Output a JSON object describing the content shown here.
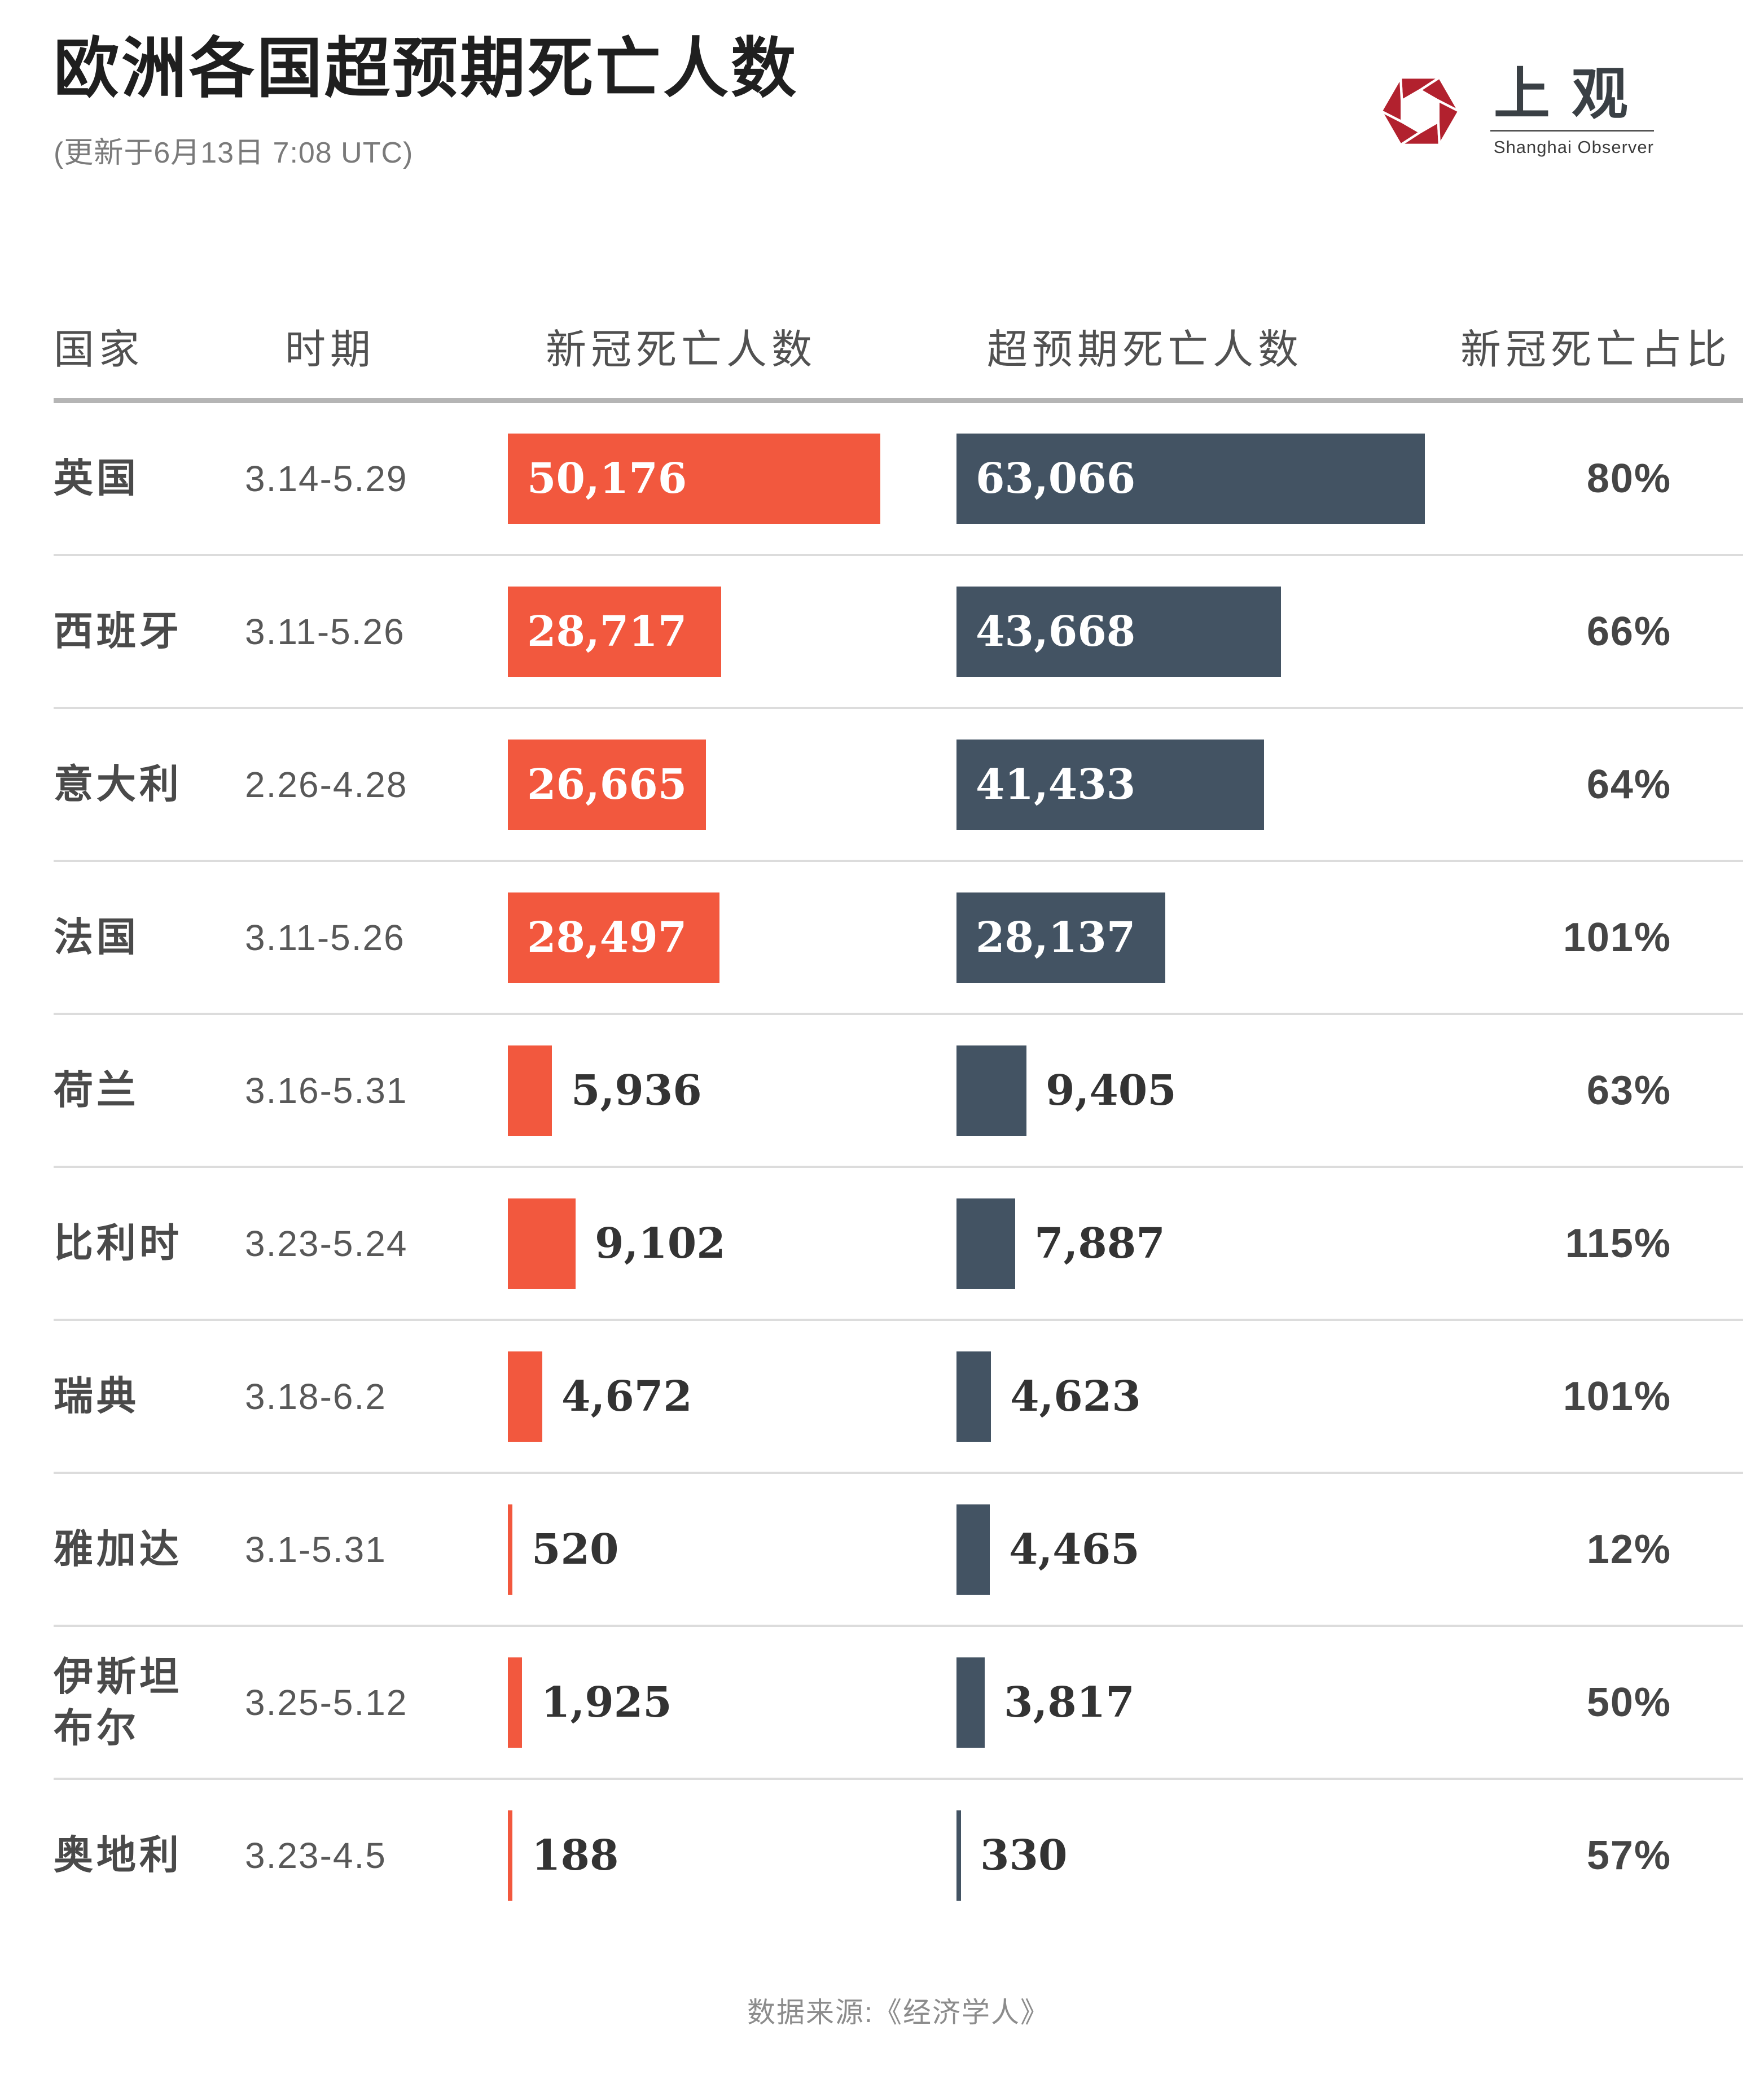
{
  "brand": {
    "name_cn": "上观",
    "name_en": "Shanghai Observer",
    "red": "#b2212e"
  },
  "colors": {
    "covid_bar": "#f2583e",
    "excess_bar": "#435363"
  },
  "chart_data": {
    "type": "bar",
    "title": "欧洲各国超预期死亡人数",
    "updated": "(更新于6月13日 7:08 UTC)",
    "columns": [
      "国家",
      "时期",
      "新冠死亡人数",
      "超预期死亡人数",
      "新冠死亡占比"
    ],
    "series": [
      {
        "name": "新冠死亡人数",
        "color": "#f2583e"
      },
      {
        "name": "超预期死亡人数",
        "color": "#435363"
      }
    ],
    "x_max": 63066,
    "rows": [
      {
        "country": "英国",
        "period": "3.14-5.29",
        "covid_deaths": "50,176",
        "excess_deaths": "63,066",
        "covid_share": "80%",
        "covid_value": 50176,
        "excess_value": 63066
      },
      {
        "country": "西班牙",
        "period": "3.11-5.26",
        "covid_deaths": "28,717",
        "excess_deaths": "43,668",
        "covid_share": "66%",
        "covid_value": 28717,
        "excess_value": 43668
      },
      {
        "country": "意大利",
        "period": "2.26-4.28",
        "covid_deaths": "26,665",
        "excess_deaths": "41,433",
        "covid_share": "64%",
        "covid_value": 26665,
        "excess_value": 41433
      },
      {
        "country": "法国",
        "period": "3.11-5.26",
        "covid_deaths": "28,497",
        "excess_deaths": "28,137",
        "covid_share": "101%",
        "covid_value": 28497,
        "excess_value": 28137
      },
      {
        "country": "荷兰",
        "period": "3.16-5.31",
        "covid_deaths": "5,936",
        "excess_deaths": "9,405",
        "covid_share": "63%",
        "covid_value": 5936,
        "excess_value": 9405
      },
      {
        "country": "比利时",
        "period": "3.23-5.24",
        "covid_deaths": "9,102",
        "excess_deaths": "7,887",
        "covid_share": "115%",
        "covid_value": 9102,
        "excess_value": 7887
      },
      {
        "country": "瑞典",
        "period": "3.18-6.2",
        "covid_deaths": "4,672",
        "excess_deaths": "4,623",
        "covid_share": "101%",
        "covid_value": 4672,
        "excess_value": 4623
      },
      {
        "country": "雅加达",
        "period": "3.1-5.31",
        "covid_deaths": "520",
        "excess_deaths": "4,465",
        "covid_share": "12%",
        "covid_value": 520,
        "excess_value": 4465
      },
      {
        "country": "伊斯坦布尔",
        "period": "3.25-5.12",
        "covid_deaths": "1,925",
        "excess_deaths": "3,817",
        "covid_share": "50%",
        "covid_value": 1925,
        "excess_value": 3817
      },
      {
        "country": "奥地利",
        "period": "3.23-4.5",
        "covid_deaths": "188",
        "excess_deaths": "330",
        "covid_share": "57%",
        "covid_value": 188,
        "excess_value": 330
      }
    ],
    "source": "数据来源:《经济学人》"
  }
}
